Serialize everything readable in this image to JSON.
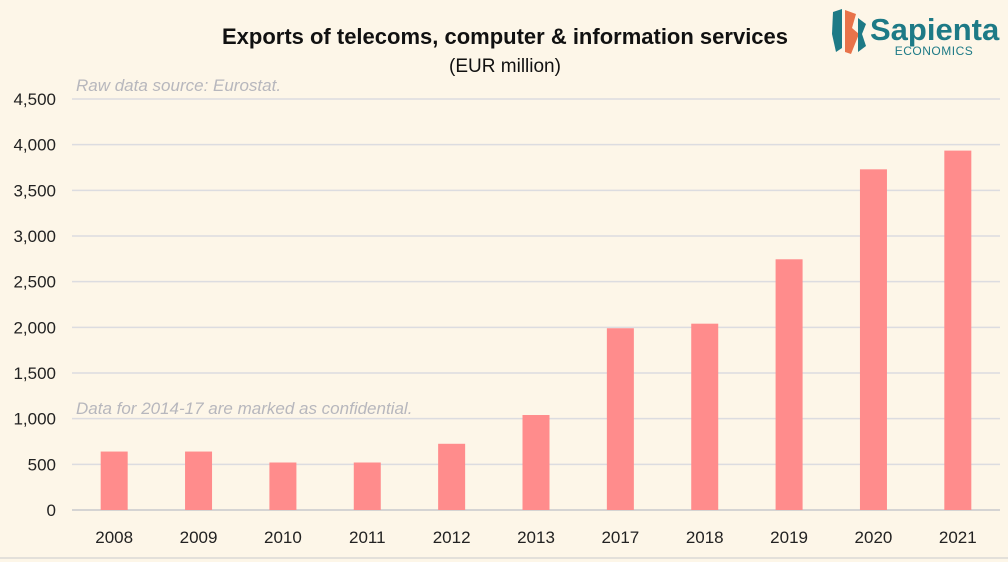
{
  "colors": {
    "bar": "#ff8c8c",
    "logo_teal": "#1d7a86",
    "logo_orange": "#e8734a",
    "note": "#b7b7bd",
    "background": "#fdf6e8"
  },
  "logo": {
    "name": "Sapienta",
    "tagline": "ECONOMICS"
  },
  "chart_data": {
    "type": "bar",
    "title": "Exports of telecoms, computer & information services",
    "subtitle": "(EUR million)",
    "categories": [
      "2008",
      "2009",
      "2010",
      "2011",
      "2012",
      "2013",
      "2017",
      "2018",
      "2019",
      "2020",
      "2021"
    ],
    "values": [
      640,
      640,
      520,
      520,
      725,
      1040,
      1990,
      2040,
      2745,
      3730,
      3935
    ],
    "ylim": [
      0,
      4500
    ],
    "yticks": [
      0,
      500,
      1000,
      1500,
      2000,
      2500,
      3000,
      3500,
      4000,
      4500
    ],
    "ytick_labels": [
      "0",
      "500",
      "1,000",
      "1,500",
      "2,000",
      "2,500",
      "3,000",
      "3,500",
      "4,000",
      "4,500"
    ],
    "grid": true,
    "legend": "none",
    "annotations": [
      "Raw data source: Eurostat.",
      "Data for 2014-17 are marked as confidential."
    ]
  }
}
